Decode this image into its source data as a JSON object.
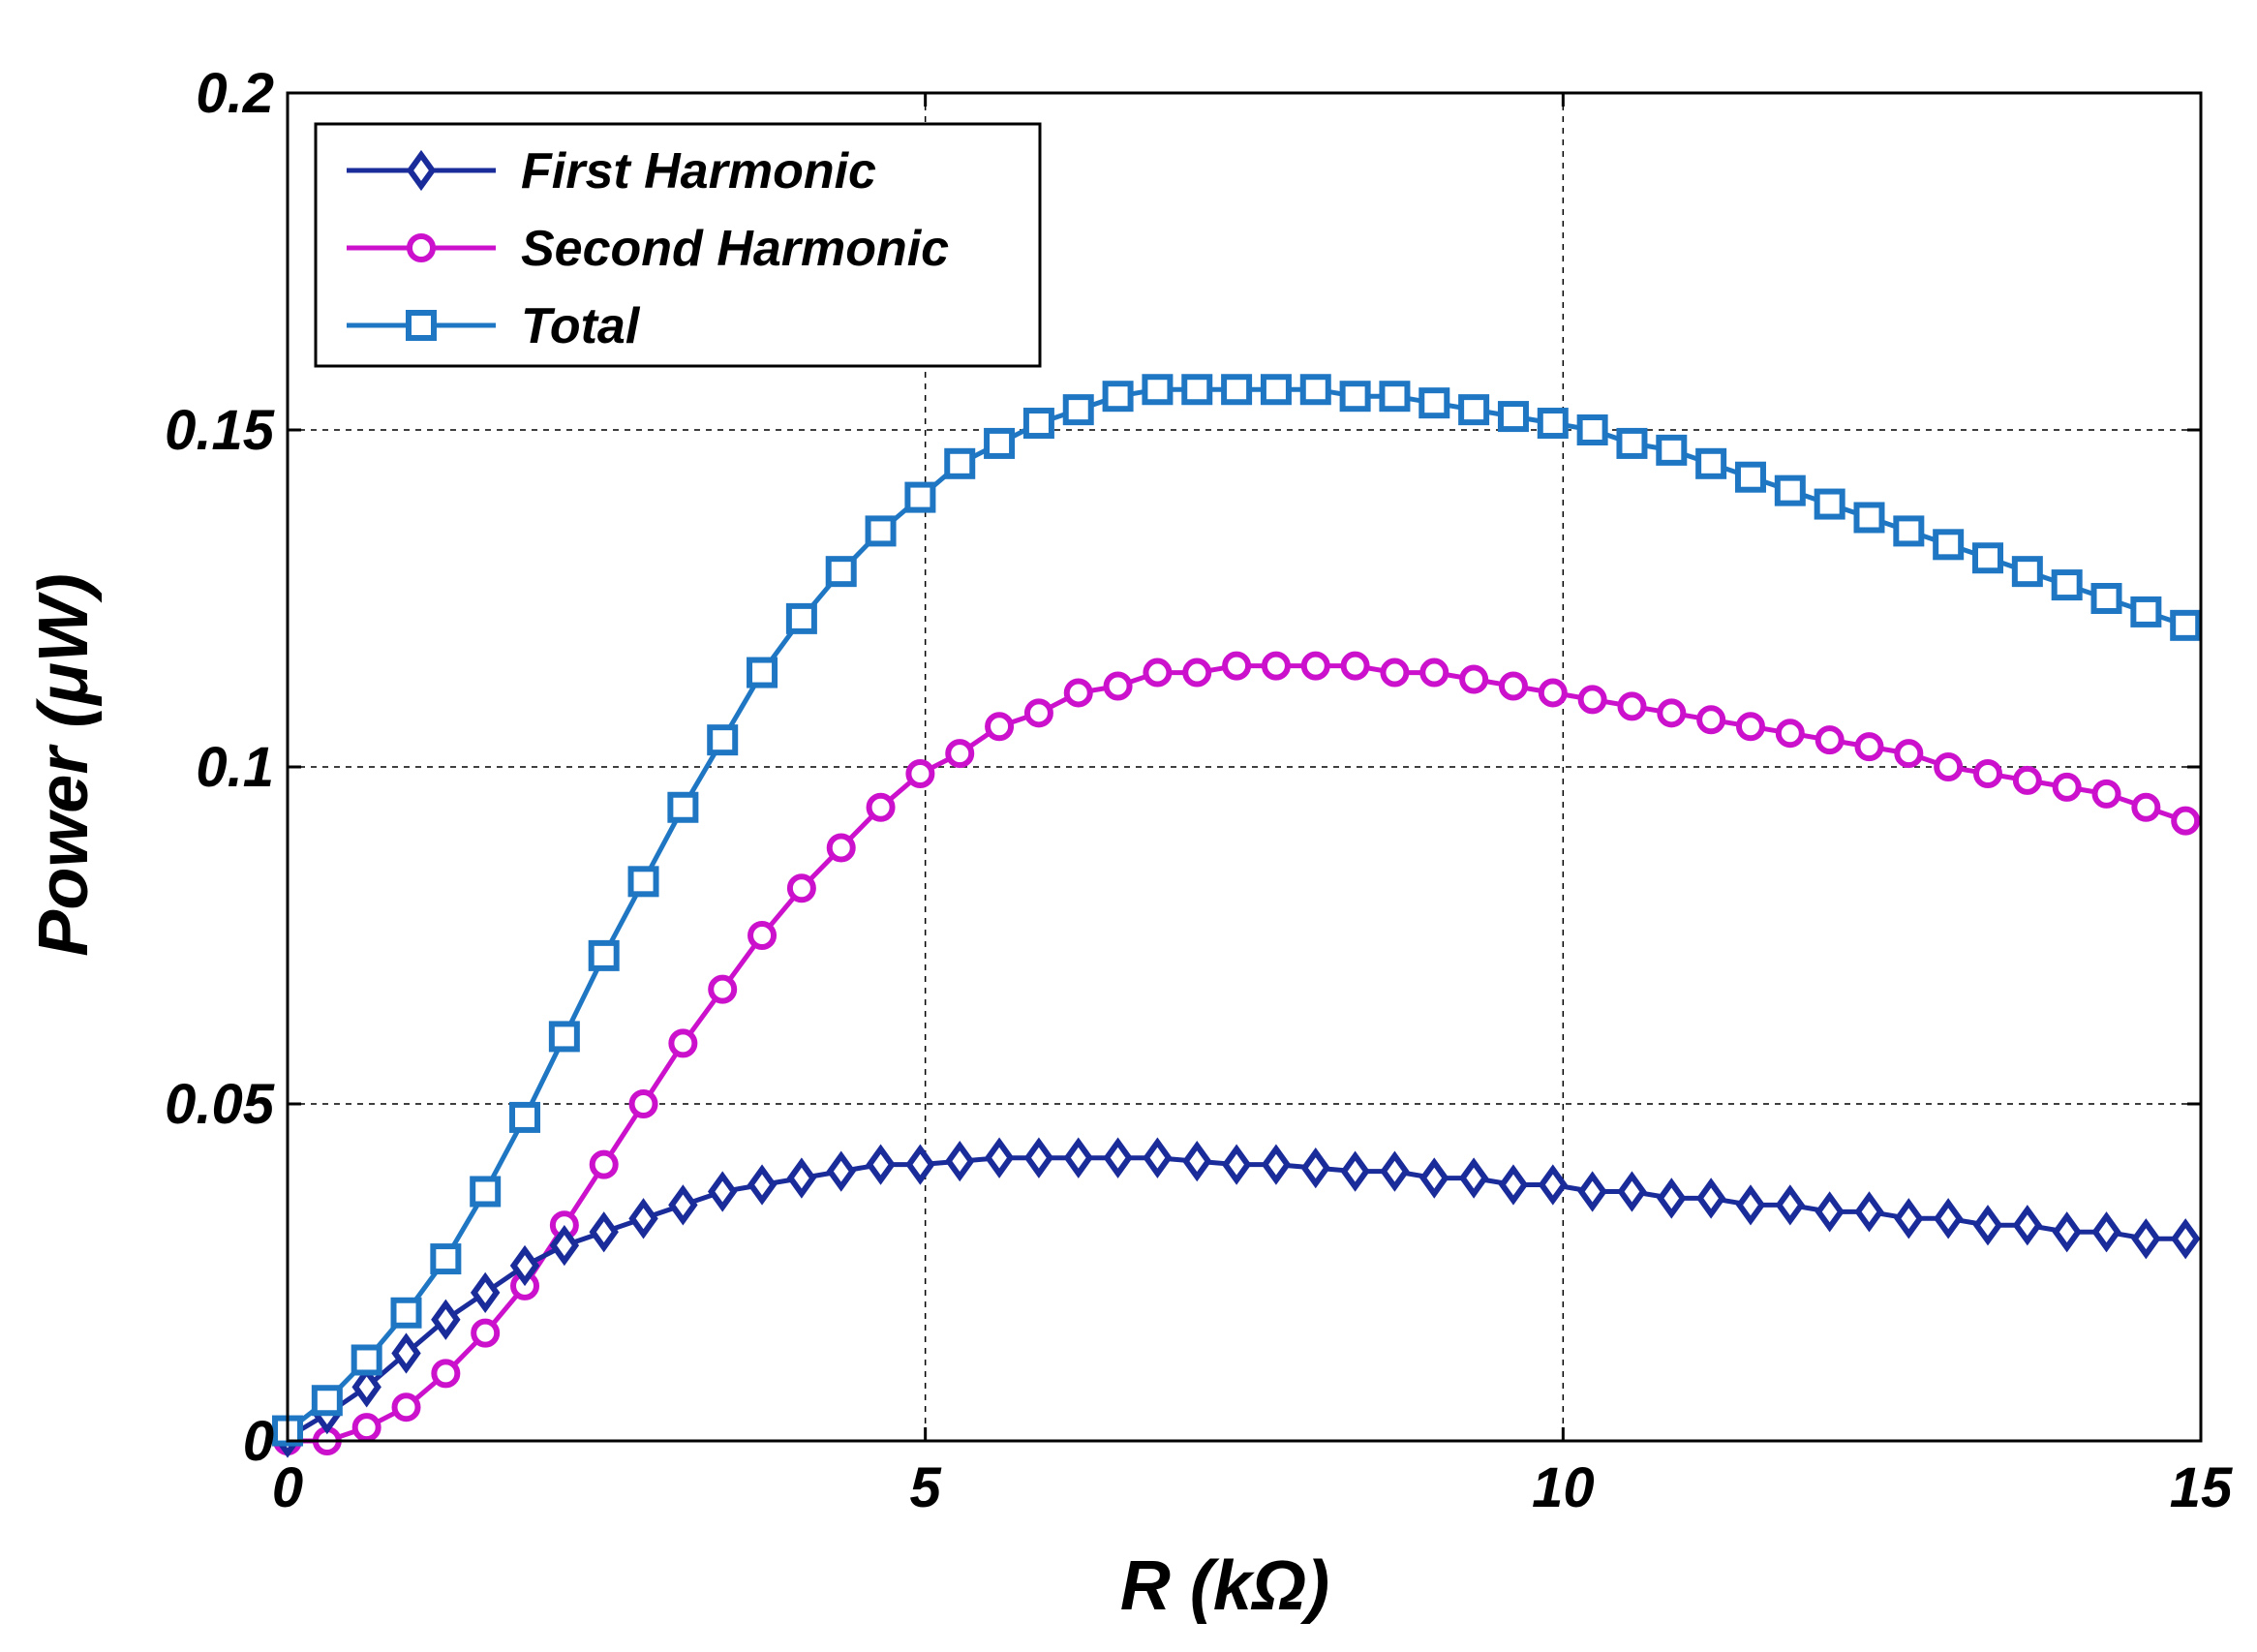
{
  "chart_data": {
    "type": "line",
    "title": "",
    "xlabel": "R (kΩ)",
    "ylabel": "Power (μW)",
    "xlim": [
      0,
      15
    ],
    "ylim": [
      0,
      0.2
    ],
    "xticks": [
      0,
      5,
      10,
      15
    ],
    "xtick_labels": [
      "0",
      "5",
      "10",
      "15"
    ],
    "yticks": [
      0,
      0.05,
      0.1,
      0.15,
      0.2
    ],
    "ytick_labels": [
      "0",
      "0.05",
      "0.1",
      "0.15",
      "0.2"
    ],
    "grid": true,
    "legend_position": "top-left",
    "x": [
      0.0,
      0.31,
      0.62,
      0.93,
      1.24,
      1.55,
      1.86,
      2.17,
      2.48,
      2.79,
      3.1,
      3.41,
      3.72,
      4.03,
      4.34,
      4.65,
      4.96,
      5.27,
      5.58,
      5.89,
      6.2,
      6.51,
      6.82,
      7.13,
      7.44,
      7.75,
      8.06,
      8.37,
      8.68,
      8.99,
      9.3,
      9.61,
      9.92,
      10.23,
      10.54,
      10.85,
      11.16,
      11.47,
      11.78,
      12.09,
      12.4,
      12.71,
      13.02,
      13.33,
      13.64,
      13.95,
      14.26,
      14.57,
      14.88
    ],
    "series": [
      {
        "name": "First Harmonic",
        "color": "#1a2b9a",
        "marker": "diamond",
        "values": [
          0.0005,
          0.004,
          0.008,
          0.013,
          0.018,
          0.022,
          0.026,
          0.029,
          0.031,
          0.033,
          0.035,
          0.037,
          0.038,
          0.039,
          0.04,
          0.041,
          0.041,
          0.0415,
          0.042,
          0.042,
          0.042,
          0.042,
          0.042,
          0.0415,
          0.041,
          0.041,
          0.0405,
          0.04,
          0.04,
          0.039,
          0.039,
          0.038,
          0.038,
          0.037,
          0.037,
          0.036,
          0.036,
          0.035,
          0.035,
          0.034,
          0.034,
          0.033,
          0.033,
          0.032,
          0.032,
          0.031,
          0.031,
          0.03,
          0.03
        ]
      },
      {
        "name": "Second Harmonic",
        "color": "#cc11cc",
        "marker": "circle",
        "values": [
          0.0,
          0.0,
          0.002,
          0.005,
          0.01,
          0.016,
          0.023,
          0.032,
          0.041,
          0.05,
          0.059,
          0.067,
          0.075,
          0.082,
          0.088,
          0.094,
          0.099,
          0.102,
          0.106,
          0.108,
          0.111,
          0.112,
          0.114,
          0.114,
          0.115,
          0.115,
          0.115,
          0.115,
          0.114,
          0.114,
          0.113,
          0.112,
          0.111,
          0.11,
          0.109,
          0.108,
          0.107,
          0.106,
          0.105,
          0.104,
          0.103,
          0.102,
          0.1,
          0.099,
          0.098,
          0.097,
          0.096,
          0.094,
          0.092
        ]
      },
      {
        "name": "Total",
        "color": "#1f77c4",
        "marker": "square",
        "values": [
          0.0015,
          0.006,
          0.012,
          0.019,
          0.027,
          0.037,
          0.048,
          0.06,
          0.072,
          0.083,
          0.094,
          0.104,
          0.114,
          0.122,
          0.129,
          0.135,
          0.14,
          0.145,
          0.148,
          0.151,
          0.153,
          0.155,
          0.156,
          0.156,
          0.156,
          0.156,
          0.156,
          0.155,
          0.155,
          0.154,
          0.153,
          0.152,
          0.151,
          0.15,
          0.148,
          0.147,
          0.145,
          0.143,
          0.141,
          0.139,
          0.137,
          0.135,
          0.133,
          0.131,
          0.129,
          0.127,
          0.125,
          0.123,
          0.121
        ]
      }
    ]
  }
}
